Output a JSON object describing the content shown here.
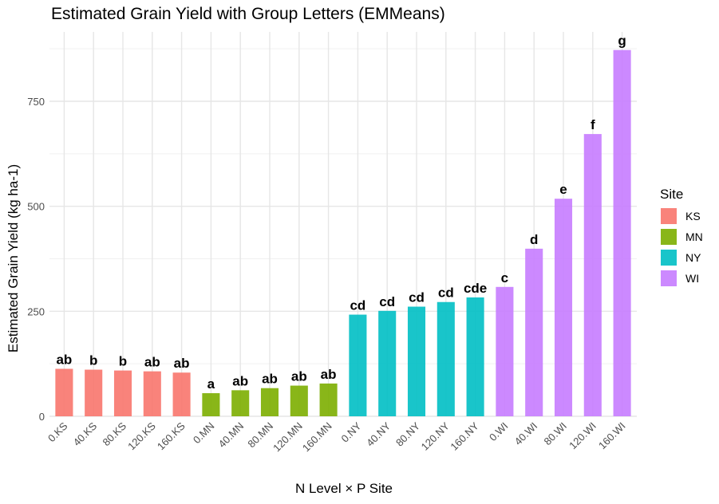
{
  "chart_data": {
    "type": "bar",
    "title": "Estimated Grain Yield with Group Letters (EMMeans)",
    "xlabel": "N Level × P Site",
    "ylabel": "Estimated Grain Yield (kg ha-1)",
    "ylim": [
      0,
      875
    ],
    "yticks": [
      0,
      250,
      500,
      750
    ],
    "grid": true,
    "legend": {
      "title": "Site",
      "position": "right"
    },
    "colors": {
      "KS": "#F8766D",
      "MN": "#7CAE00",
      "NY": "#00BFC4",
      "WI": "#C77CFF"
    },
    "sites": [
      "KS",
      "MN",
      "NY",
      "WI"
    ],
    "categories": [
      "0.KS",
      "40.KS",
      "80.KS",
      "120.KS",
      "160.KS",
      "0.MN",
      "40.MN",
      "80.MN",
      "120.MN",
      "160.MN",
      "0.NY",
      "40.NY",
      "80.NY",
      "120.NY",
      "160.NY",
      "0.WI",
      "40.WI",
      "80.WI",
      "120.WI",
      "160.WI"
    ],
    "site_of_category": [
      "KS",
      "KS",
      "KS",
      "KS",
      "KS",
      "MN",
      "MN",
      "MN",
      "MN",
      "MN",
      "NY",
      "NY",
      "NY",
      "NY",
      "NY",
      "WI",
      "WI",
      "WI",
      "WI",
      "WI"
    ],
    "values": [
      113,
      111,
      109,
      107,
      104,
      55,
      62,
      67,
      73,
      78,
      242,
      251,
      261,
      272,
      283,
      308,
      399,
      518,
      672,
      872
    ],
    "group_letters": [
      "ab",
      "b",
      "b",
      "ab",
      "ab",
      "a",
      "ab",
      "ab",
      "ab",
      "ab",
      "cd",
      "cd",
      "cd",
      "cd",
      "cde",
      "c",
      "d",
      "e",
      "f",
      "g"
    ]
  }
}
